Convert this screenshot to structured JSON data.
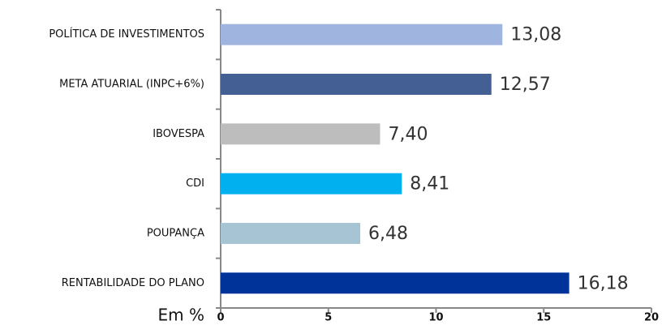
{
  "chart_data": {
    "type": "bar",
    "orientation": "horizontal",
    "x_label": "Em %",
    "categories": [
      "POLÍTICA DE INVESTIMENTOS",
      "META ATUARIAL (INPC+6%)",
      "IBOVESPA",
      "CDI",
      "POUPANÇA",
      "RENTABILIDADE DO PLANO"
    ],
    "values": [
      13.08,
      12.57,
      7.4,
      8.41,
      6.48,
      16.18
    ],
    "value_labels": [
      "13,08",
      "12,57",
      "7,40",
      "8,41",
      "6,48",
      "16,18"
    ],
    "colors": [
      "#9fb4de",
      "#445f94",
      "#bdbdbd",
      "#00b0ef",
      "#a6c4d4",
      "#003399"
    ],
    "xlim": [
      0,
      20
    ],
    "xticks": [
      0,
      5,
      10,
      15,
      20
    ],
    "grid": false
  }
}
